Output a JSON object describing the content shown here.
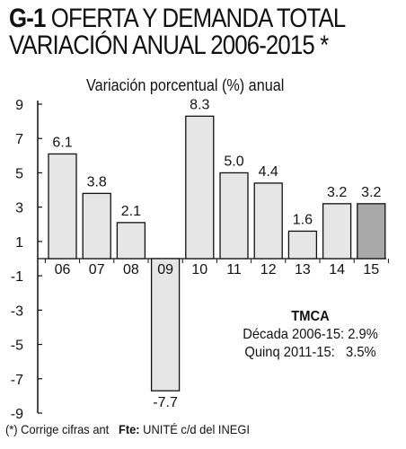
{
  "header": {
    "code": "G-1",
    "title_rest": "OFERTA Y DEMANDA TOTAL",
    "title_line2": "VARIACIÓN ANUAL 2006-2015 *"
  },
  "chart_data": {
    "type": "bar",
    "subtitle": "Variación porcentual (%) anual",
    "categories": [
      "06",
      "07",
      "08",
      "09",
      "10",
      "11",
      "12",
      "13",
      "14",
      "15"
    ],
    "values": [
      6.1,
      3.8,
      2.1,
      -7.7,
      8.3,
      5.0,
      4.4,
      1.6,
      3.2,
      3.2
    ],
    "value_labels": [
      "6.1",
      "3.8",
      "2.1",
      "-7.7",
      "8.3",
      "5.0",
      "4.4",
      "1.6",
      "3.2",
      "3.2"
    ],
    "y_ticks": [
      9,
      7,
      5,
      3,
      1,
      -1,
      -3,
      -5,
      -7,
      -9
    ],
    "ylim": [
      -9,
      9
    ],
    "grid": false,
    "legend": "none",
    "colors": {
      "bar": "#e6e6e6",
      "bar_last": "#a9a9a9",
      "stroke": "#111111"
    }
  },
  "tmca": {
    "heading": "TMCA",
    "line1": "Década 2006-15: 2.9%",
    "line2": "Quinq 2011-15:   3.5%"
  },
  "footer": {
    "note": "(*) Corrige cifras ant",
    "source_label": "Fte:",
    "source_text": "UNITÉ c/d del INEGI"
  }
}
